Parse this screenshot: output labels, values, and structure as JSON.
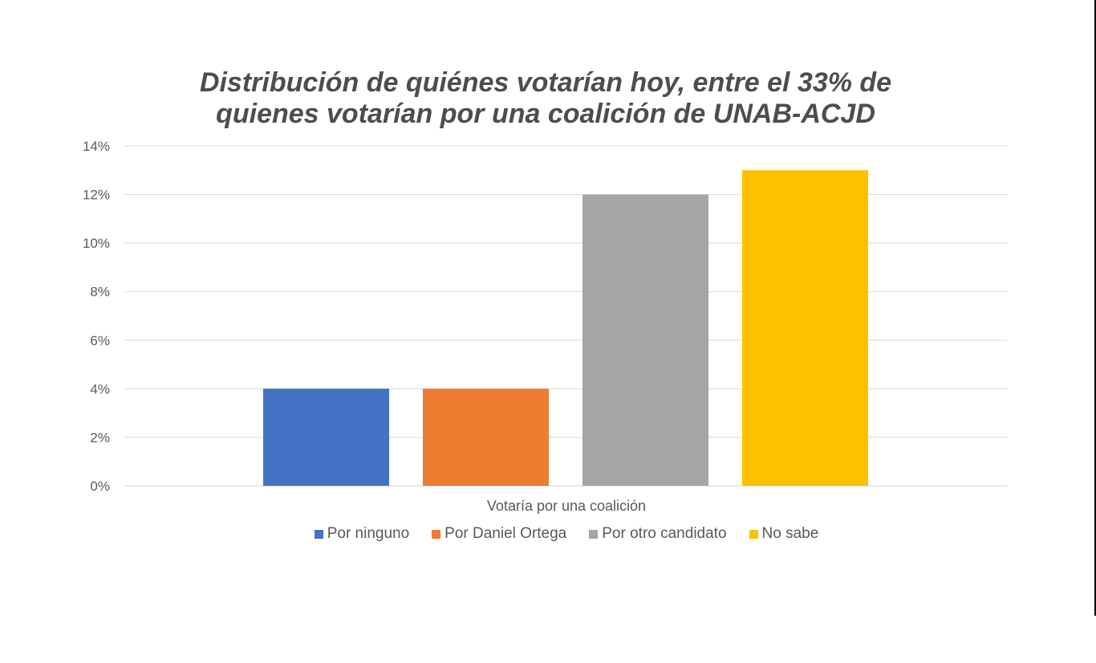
{
  "chart_data": {
    "type": "bar",
    "title_lines": [
      "Distribución de quiénes votarían hoy, entre el 33% de",
      "quienes votarían por una coalición de UNAB-ACJD"
    ],
    "xlabel": "Votaría por una coalición",
    "ylabel": "",
    "ylim": [
      0,
      14
    ],
    "yticks": [
      "0%",
      "2%",
      "4%",
      "6%",
      "8%",
      "10%",
      "12%",
      "14%"
    ],
    "grid": true,
    "legend_position": "bottom",
    "series": [
      {
        "name": "Por ninguno",
        "value": 4,
        "color": "#4472c4"
      },
      {
        "name": "Por Daniel Ortega",
        "value": 4,
        "color": "#ed7d31"
      },
      {
        "name": "Por otro candidato",
        "value": 12,
        "color": "#a5a5a5"
      },
      {
        "name": "No sabe",
        "value": 13,
        "color": "#ffc000"
      }
    ]
  }
}
